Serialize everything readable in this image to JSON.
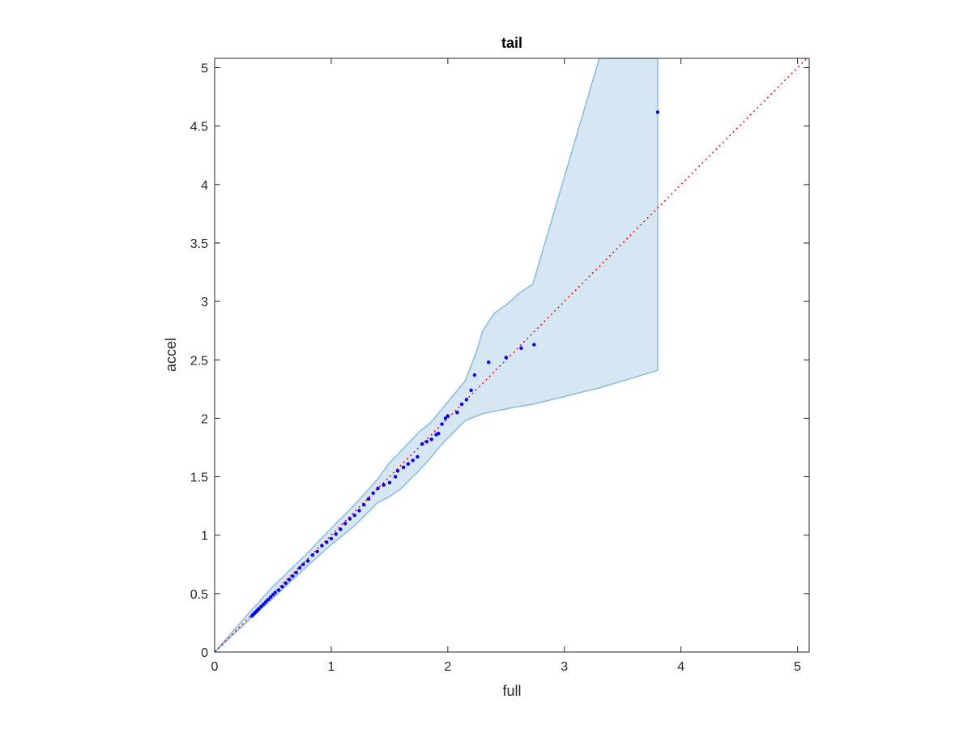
{
  "chart_data": {
    "type": "scatter",
    "title": "tail",
    "xlabel": "full",
    "ylabel": "accel",
    "xlim": [
      0,
      5.1
    ],
    "ylim": [
      0,
      5.08
    ],
    "xticks": [
      "0",
      "1",
      "2",
      "3",
      "4",
      "5"
    ],
    "yticks": [
      "0",
      "0.5",
      "1",
      "1.5",
      "2",
      "2.5",
      "3",
      "3.5",
      "4",
      "4.5",
      "5"
    ],
    "grid": false,
    "colors": {
      "points": "#0000ff",
      "reference_line": "#ff0000",
      "band_fill": "#d6e6f2",
      "band_edge": "#86bde0",
      "axes": "#262626"
    },
    "series": [
      {
        "kind": "points",
        "points": [
          [
            0.0,
            0.0
          ],
          [
            0.32,
            0.31
          ],
          [
            0.33,
            0.32
          ],
          [
            0.34,
            0.33
          ],
          [
            0.35,
            0.34
          ],
          [
            0.36,
            0.35
          ],
          [
            0.37,
            0.36
          ],
          [
            0.38,
            0.37
          ],
          [
            0.4,
            0.39
          ],
          [
            0.42,
            0.41
          ],
          [
            0.44,
            0.43
          ],
          [
            0.46,
            0.45
          ],
          [
            0.48,
            0.47
          ],
          [
            0.5,
            0.49
          ],
          [
            0.52,
            0.51
          ],
          [
            0.55,
            0.53
          ],
          [
            0.58,
            0.56
          ],
          [
            0.61,
            0.59
          ],
          [
            0.64,
            0.62
          ],
          [
            0.67,
            0.65
          ],
          [
            0.7,
            0.68
          ],
          [
            0.73,
            0.72
          ],
          [
            0.76,
            0.75
          ],
          [
            0.8,
            0.78
          ],
          [
            0.84,
            0.83
          ],
          [
            0.88,
            0.86
          ],
          [
            0.92,
            0.91
          ],
          [
            0.96,
            0.94
          ],
          [
            1.0,
            0.97
          ],
          [
            1.04,
            1.01
          ],
          [
            1.08,
            1.05
          ],
          [
            1.12,
            1.1
          ],
          [
            1.16,
            1.14
          ],
          [
            1.2,
            1.17
          ],
          [
            1.24,
            1.21
          ],
          [
            1.28,
            1.26
          ],
          [
            1.32,
            1.31
          ],
          [
            1.36,
            1.36
          ],
          [
            1.4,
            1.4
          ],
          [
            1.45,
            1.43
          ],
          [
            1.5,
            1.45
          ],
          [
            1.55,
            1.5
          ],
          [
            1.57,
            1.55
          ],
          [
            1.62,
            1.58
          ],
          [
            1.66,
            1.61
          ],
          [
            1.7,
            1.64
          ],
          [
            1.74,
            1.67
          ],
          [
            1.78,
            1.78
          ],
          [
            1.82,
            1.8
          ],
          [
            1.86,
            1.82
          ],
          [
            1.9,
            1.86
          ],
          [
            1.92,
            1.87
          ],
          [
            1.95,
            1.95
          ],
          [
            1.98,
            2.0
          ],
          [
            2.0,
            2.02
          ],
          [
            2.08,
            2.05
          ],
          [
            2.12,
            2.12
          ],
          [
            2.16,
            2.16
          ],
          [
            2.2,
            2.24
          ],
          [
            2.23,
            2.37
          ],
          [
            2.35,
            2.48
          ],
          [
            2.5,
            2.52
          ],
          [
            2.63,
            2.6
          ],
          [
            2.74,
            2.63
          ],
          [
            3.8,
            4.62
          ]
        ]
      },
      {
        "kind": "reference_line",
        "x": [
          0,
          5.1
        ],
        "y": [
          0,
          5.1
        ]
      },
      {
        "kind": "confidence_band",
        "x": [
          0.0,
          0.3,
          0.5,
          0.8,
          1.0,
          1.2,
          1.4,
          1.5,
          1.6,
          1.75,
          1.85,
          1.95,
          2.05,
          2.15,
          2.25,
          2.3,
          2.4,
          2.5,
          2.6,
          2.73,
          3.3,
          3.8
        ],
        "upper": [
          0.0,
          0.34,
          0.56,
          0.85,
          1.06,
          1.26,
          1.48,
          1.62,
          1.72,
          1.88,
          1.96,
          2.08,
          2.2,
          2.32,
          2.58,
          2.75,
          2.9,
          2.97,
          3.06,
          3.15,
          5.08,
          5.08
        ],
        "lower": [
          0.0,
          0.28,
          0.46,
          0.74,
          0.92,
          1.08,
          1.28,
          1.33,
          1.4,
          1.55,
          1.66,
          1.78,
          1.88,
          1.98,
          2.02,
          2.04,
          2.06,
          2.08,
          2.1,
          2.12,
          2.26,
          2.41
        ]
      }
    ]
  }
}
